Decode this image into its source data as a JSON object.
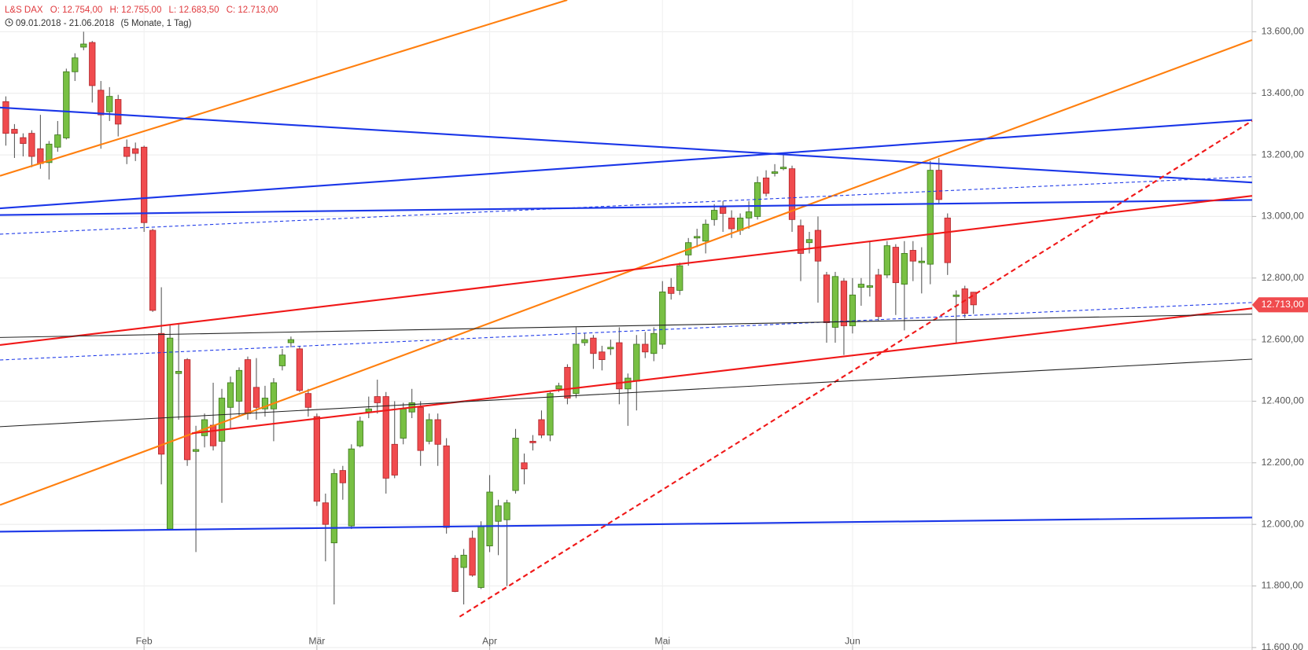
{
  "chart_data": {
    "type": "candlestick",
    "title": "L&S DAX",
    "ohlc_labels": [
      "O: 12.754,00",
      "H: 12.755,00",
      "L: 12.683,50",
      "C: 12.713,00"
    ],
    "date_range": "09.01.2018 - 21.06.2018",
    "period": "(5 Monate, 1 Tag)",
    "categories": [
      null,
      null,
      null,
      null,
      null,
      null,
      null,
      null,
      null,
      null,
      null,
      null,
      null,
      null,
      null,
      null,
      "Feb",
      null,
      null,
      null,
      null,
      null,
      null,
      null,
      null,
      null,
      null,
      null,
      null,
      null,
      null,
      null,
      null,
      null,
      null,
      null,
      "Mär",
      null,
      null,
      null,
      null,
      null,
      null,
      null,
      null,
      null,
      null,
      null,
      null,
      null,
      null,
      null,
      null,
      null,
      null,
      null,
      "Apr",
      null,
      null,
      null,
      null,
      null,
      null,
      null,
      null,
      null,
      null,
      null,
      null,
      null,
      null,
      null,
      null,
      null,
      null,
      null,
      "Mai",
      null,
      null,
      null,
      null,
      null,
      null,
      null,
      null,
      null,
      null,
      null,
      null,
      null,
      null,
      null,
      null,
      null,
      null,
      null,
      null,
      null,
      "Jun",
      null,
      null,
      null,
      null,
      null,
      null,
      null,
      null,
      null,
      null,
      null,
      null,
      null,
      null
    ],
    "open": [
      13373,
      13283,
      13256,
      13270,
      13220,
      13175,
      13225,
      13255,
      13470,
      13550,
      13565,
      13410,
      13340,
      13380,
      13225,
      13220,
      13225,
      12955,
      12620,
      11985,
      12490,
      12535,
      12237,
      12288,
      12322,
      12270,
      12380,
      12400,
      12535,
      12445,
      12375,
      12375,
      12515,
      12590,
      12570,
      12425,
      12350,
      12070,
      11940,
      12175,
      11995,
      12255,
      12365,
      12415,
      12415,
      12260,
      12280,
      12365,
      12380,
      12270,
      12340,
      12255,
      11890,
      11860,
      11955,
      11795,
      11930,
      12010,
      12015,
      12110,
      12200,
      12270,
      12340,
      12290,
      12440,
      12510,
      12425,
      12590,
      12605,
      12560,
      12570,
      12590,
      12440,
      12465,
      12585,
      12555,
      12585,
      12770,
      12760,
      12875,
      12930,
      12920,
      12990,
      13030,
      12995,
      12955,
      12995,
      13000,
      13125,
      13140,
      13155,
      13155,
      12970,
      12915,
      12955,
      12810,
      12640,
      12790,
      12645,
      12770,
      12770,
      12810,
      12810,
      12900,
      12780,
      12890,
      12850,
      12845,
      13150,
      12995,
      12740,
      12765,
      12754
    ],
    "high": [
      13390,
      13300,
      13270,
      13280,
      13330,
      13245,
      13310,
      13480,
      13530,
      13600,
      13570,
      13440,
      13420,
      13395,
      13250,
      13240,
      13230,
      12960,
      12770,
      12650,
      12650,
      12540,
      12320,
      12360,
      12460,
      12440,
      12480,
      12510,
      12545,
      12540,
      12450,
      12475,
      12570,
      12610,
      12580,
      12440,
      12360,
      12100,
      12180,
      12190,
      12260,
      12350,
      12415,
      12470,
      12430,
      12400,
      12395,
      12440,
      12400,
      12360,
      12360,
      12280,
      11900,
      11920,
      11980,
      12010,
      12160,
      12080,
      12080,
      12310,
      12230,
      12290,
      12370,
      12430,
      12460,
      12520,
      12640,
      12620,
      12615,
      12580,
      12600,
      12640,
      12490,
      12615,
      12625,
      12640,
      12790,
      12800,
      12850,
      12930,
      12960,
      12990,
      13040,
      13050,
      13020,
      13010,
      13050,
      13130,
      13150,
      13170,
      13200,
      13165,
      12990,
      12950,
      13000,
      12820,
      12820,
      12800,
      12800,
      12800,
      12920,
      12830,
      12920,
      12910,
      12920,
      12920,
      12900,
      13180,
      13190,
      13010,
      12760,
      12775,
      12755
    ],
    "low": [
      13230,
      13190,
      13195,
      13160,
      13155,
      13120,
      13210,
      13250,
      13440,
      13540,
      13370,
      13220,
      13310,
      13260,
      13170,
      13180,
      12950,
      12690,
      12130,
      11985,
      12340,
      12190,
      11910,
      12250,
      12240,
      12070,
      12310,
      12350,
      12340,
      12340,
      12350,
      12270,
      12500,
      12575,
      12430,
      12350,
      12060,
      11880,
      11740,
      12080,
      11985,
      12250,
      12345,
      12360,
      12100,
      12150,
      12260,
      12345,
      12190,
      12260,
      12190,
      11970,
      11780,
      11740,
      11830,
      11790,
      11910,
      11900,
      11800,
      12100,
      12130,
      12240,
      12280,
      12270,
      12430,
      12390,
      12410,
      12580,
      12505,
      12500,
      12550,
      12390,
      12320,
      12370,
      12540,
      12530,
      12570,
      12730,
      12745,
      12840,
      12900,
      12880,
      12970,
      12950,
      12930,
      12940,
      12960,
      12990,
      13065,
      13130,
      13150,
      12950,
      12790,
      12880,
      12720,
      12590,
      12590,
      12550,
      12620,
      12710,
      12740,
      12660,
      12800,
      12680,
      12630,
      12790,
      12750,
      12780,
      13040,
      12810,
      12590,
      12670,
      12683.5
    ],
    "close": [
      13270,
      13270,
      13237,
      13195,
      13172,
      13235,
      13265,
      13470,
      13515,
      13560,
      13425,
      13330,
      13390,
      13300,
      13195,
      13205,
      12980,
      12695,
      12228,
      12605,
      12497,
      12210,
      12243,
      12340,
      12255,
      12410,
      12460,
      12500,
      12360,
      12380,
      12410,
      12460,
      12550,
      12600,
      12435,
      12380,
      12075,
      12000,
      12165,
      12135,
      12245,
      12335,
      12375,
      12395,
      12150,
      12160,
      12375,
      12395,
      12240,
      12340,
      12260,
      11990,
      11782,
      11900,
      11835,
      11995,
      12105,
      12060,
      12070,
      12280,
      12180,
      12265,
      12290,
      12425,
      12450,
      12410,
      12585,
      12600,
      12555,
      12535,
      12575,
      12440,
      12475,
      12585,
      12560,
      12620,
      12755,
      12750,
      12840,
      12915,
      12935,
      12975,
      13020,
      13010,
      12960,
      12995,
      13015,
      13110,
      13075,
      13145,
      13160,
      12990,
      12880,
      12925,
      12855,
      12655,
      12805,
      12645,
      12745,
      12780,
      12775,
      12675,
      12905,
      12785,
      12880,
      12855,
      12855,
      13150,
      13055,
      12850,
      12745,
      12685,
      12713
    ],
    "up_color": "#78c043",
    "down_color": "#f04b4e",
    "last_price": {
      "value": 12713,
      "label": "12.713,00"
    },
    "ylim": [
      11592,
      13703
    ],
    "yticks": [
      {
        "value": 11600,
        "label": "11.600,00"
      },
      {
        "value": 11800,
        "label": "11.800,00"
      },
      {
        "value": 12000,
        "label": "12.000,00"
      },
      {
        "value": 12200,
        "label": "12.200,00"
      },
      {
        "value": 12400,
        "label": "12.400,00"
      },
      {
        "value": 12600,
        "label": "12.600,00"
      },
      {
        "value": 12800,
        "label": "12.800,00"
      },
      {
        "value": 13000,
        "label": "13.000,00"
      },
      {
        "value": 13200,
        "label": "13.200,00"
      },
      {
        "value": 13400,
        "label": "13.400,00"
      },
      {
        "value": 13600,
        "label": "13.600,00"
      }
    ],
    "grid": true
  }
}
